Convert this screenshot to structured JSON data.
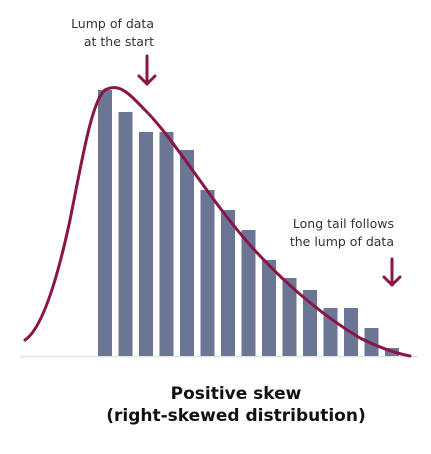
{
  "chart_data": {
    "type": "bar",
    "title_lines": [
      "Positive skew",
      "(right-skewed distribution)"
    ],
    "values": [
      266,
      244,
      224,
      224,
      206,
      166,
      146,
      126,
      96,
      78,
      66,
      48,
      48,
      28,
      8
    ],
    "density_curve": true,
    "annotations": [
      {
        "name": "lump-annotation",
        "lines": [
          "Lump of data",
          "at the start"
        ],
        "arrow": "down"
      },
      {
        "name": "tail-annotation",
        "lines": [
          "Long tail follows",
          "the lump of data"
        ],
        "arrow": "down"
      }
    ],
    "colors": {
      "bars": "#6b7694",
      "curve": "#8a1547",
      "arrows": "#8a1547",
      "baseline": "#e2e2e2"
    }
  }
}
